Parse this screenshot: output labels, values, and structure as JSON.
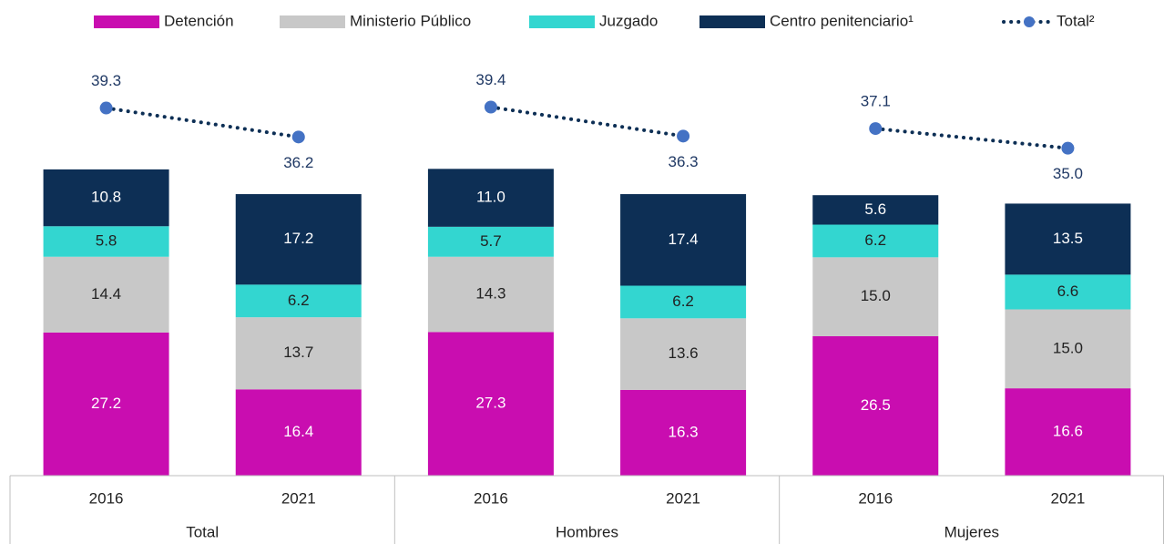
{
  "chart_data": {
    "type": "stacked-bar-line",
    "categories": [
      "2016",
      "2021",
      "2016",
      "2021",
      "2016",
      "2021"
    ],
    "groups": [
      "Total",
      "Hombres",
      "Mujeres"
    ],
    "ylim": [
      0,
      80
    ],
    "y2lim": [
      0,
      45
    ],
    "series": [
      {
        "name": "Detención",
        "color": "#c90db0",
        "label_color": "#ffffff",
        "values": [
          27.2,
          16.4,
          27.3,
          16.3,
          26.5,
          16.6
        ],
        "value_labels": [
          "27.2",
          "16.4",
          "27.3",
          "16.3",
          "26.5",
          "16.6"
        ]
      },
      {
        "name": "Ministerio Público",
        "color": "#c8c8c8",
        "label_color": "#222222",
        "values": [
          14.4,
          13.7,
          14.3,
          13.6,
          15.0,
          15.0
        ],
        "value_labels": [
          "14.4",
          "13.7",
          "14.3",
          "13.6",
          "15.0",
          "15.0"
        ]
      },
      {
        "name": "Juzgado",
        "color": "#33d6d0",
        "label_color": "#222222",
        "values": [
          5.8,
          6.2,
          5.7,
          6.2,
          6.2,
          6.6
        ],
        "value_labels": [
          "5.8",
          "6.2",
          "5.7",
          "6.2",
          "6.2",
          "6.6"
        ]
      },
      {
        "name": "Centro penitenciario¹",
        "color": "#0d2f55",
        "label_color": "#ffffff",
        "values": [
          10.8,
          17.2,
          11.0,
          17.4,
          5.6,
          13.5
        ],
        "value_labels": [
          "10.8",
          "17.2",
          "11.0",
          "17.4",
          "5.6",
          "13.5"
        ]
      },
      {
        "name": "Total²",
        "type": "line",
        "axis": "y2",
        "color": "#4472c4",
        "line_color": "#0d2f55",
        "label_color": "#1f3864",
        "values": [
          39.3,
          36.2,
          39.4,
          36.3,
          37.1,
          35.0
        ],
        "value_labels": [
          "39.3",
          "36.2",
          "39.4",
          "36.3",
          "37.1",
          "35.0"
        ]
      }
    ]
  }
}
